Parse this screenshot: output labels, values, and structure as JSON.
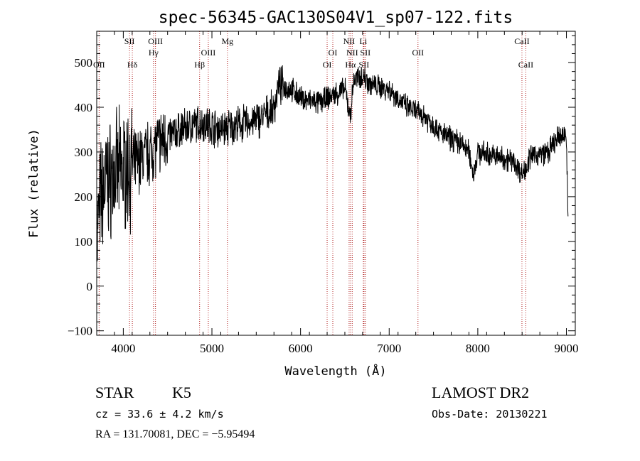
{
  "chart_data": {
    "type": "line",
    "title": "spec-56345-GAC130S04V1_sp07-122.fits",
    "xlabel": "Wavelength (Å)",
    "ylabel": "Flux (relative)",
    "xlim": [
      3700,
      9100
    ],
    "ylim": [
      -110,
      570
    ],
    "xticks": [
      4000,
      5000,
      6000,
      7000,
      8000,
      9000
    ],
    "yticks": [
      -100,
      0,
      100,
      200,
      300,
      400,
      500
    ],
    "grid": false,
    "spectrum_anchors": [
      [
        3700,
        120
      ],
      [
        3750,
        200
      ],
      [
        3800,
        230
      ],
      [
        3900,
        250
      ],
      [
        4000,
        260
      ],
      [
        4100,
        270
      ],
      [
        4200,
        285
      ],
      [
        4300,
        300
      ],
      [
        4400,
        320
      ],
      [
        4500,
        335
      ],
      [
        4700,
        355
      ],
      [
        4900,
        365
      ],
      [
        5100,
        350
      ],
      [
        5300,
        360
      ],
      [
        5500,
        370
      ],
      [
        5700,
        395
      ],
      [
        5750,
        450
      ],
      [
        5900,
        440
      ],
      [
        6000,
        420
      ],
      [
        6200,
        410
      ],
      [
        6300,
        420
      ],
      [
        6400,
        430
      ],
      [
        6500,
        440
      ],
      [
        6560,
        380
      ],
      [
        6600,
        460
      ],
      [
        6700,
        470
      ],
      [
        6800,
        450
      ],
      [
        7000,
        440
      ],
      [
        7200,
        400
      ],
      [
        7400,
        380
      ],
      [
        7600,
        340
      ],
      [
        7800,
        320
      ],
      [
        7900,
        300
      ],
      [
        7950,
        250
      ],
      [
        8000,
        300
      ],
      [
        8200,
        290
      ],
      [
        8400,
        280
      ],
      [
        8500,
        250
      ],
      [
        8600,
        290
      ],
      [
        8800,
        300
      ],
      [
        8900,
        330
      ],
      [
        9000,
        340
      ],
      [
        9020,
        120
      ]
    ],
    "lines": [
      {
        "label": "OII",
        "wavelength": 3727,
        "row": 2
      },
      {
        "label": "SII",
        "wavelength": 4070,
        "row": 0
      },
      {
        "label": "Hδ",
        "wavelength": 4102,
        "row": 2
      },
      {
        "label": "OIII",
        "wavelength": 4363,
        "row": 0
      },
      {
        "label": "Hγ",
        "wavelength": 4341,
        "row": 1
      },
      {
        "label": "Hβ",
        "wavelength": 4861,
        "row": 2
      },
      {
        "label": "OIII",
        "wavelength": 4959,
        "row": 1
      },
      {
        "label": "Mg",
        "wavelength": 5175,
        "row": 0
      },
      {
        "label": "OI",
        "wavelength": 6300,
        "row": 2
      },
      {
        "label": "OI",
        "wavelength": 6364,
        "row": 1
      },
      {
        "label": "NII",
        "wavelength": 6548,
        "row": 0
      },
      {
        "label": "Hα",
        "wavelength": 6563,
        "row": 2
      },
      {
        "label": "NII",
        "wavelength": 6583,
        "row": 1
      },
      {
        "label": "Li",
        "wavelength": 6708,
        "row": 0
      },
      {
        "label": "SII",
        "wavelength": 6716,
        "row": 2
      },
      {
        "label": "SII",
        "wavelength": 6731,
        "row": 1
      },
      {
        "label": "OII",
        "wavelength": 7325,
        "row": 1
      },
      {
        "label": "CaII",
        "wavelength": 8498,
        "row": 0
      },
      {
        "label": "CaII",
        "wavelength": 8542,
        "row": 2
      }
    ]
  },
  "info": {
    "class": "STAR",
    "subclass": "K5",
    "cz": "cz = 33.6 ± 4.2 km/s",
    "coords": "RA = 131.70081, DEC =  −5.95494",
    "survey": "LAMOST DR2",
    "obs_date": "Obs-Date: 20130221"
  }
}
